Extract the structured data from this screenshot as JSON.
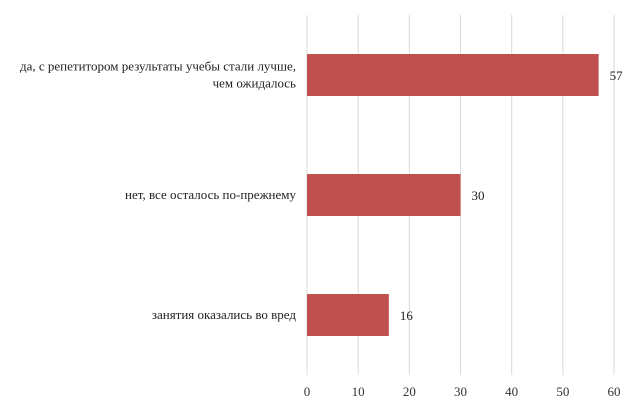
{
  "chart_data": {
    "type": "bar",
    "orientation": "horizontal",
    "title": "",
    "xlabel": "",
    "ylabel": "",
    "categories": [
      [
        "да, с репетитором результаты учебы стали лучше,",
        "чем ожидалось"
      ],
      [
        "нет, все осталось по-прежнему"
      ],
      [
        "занятия оказались во вред"
      ]
    ],
    "values": [
      57,
      30,
      16
    ],
    "data_labels": [
      "57",
      "30",
      "16"
    ],
    "xlim": [
      0,
      60
    ],
    "ticks": [
      0,
      10,
      20,
      30,
      40,
      50,
      60
    ],
    "tick_labels": [
      "0",
      "10",
      "20",
      "30",
      "40",
      "50",
      "60"
    ],
    "grid": "vertical",
    "legend": "none",
    "bar_color": "#c0504d",
    "grid_color": "#d9d9d9"
  }
}
